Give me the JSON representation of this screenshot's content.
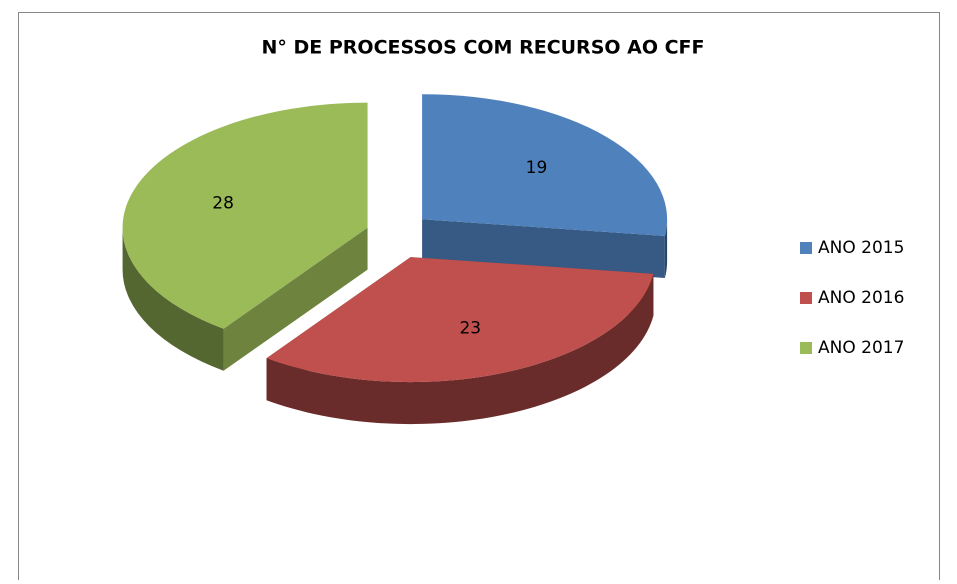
{
  "chart_data": {
    "type": "pie",
    "title": "N° DE PROCESSOS COM RECURSO AO CFF",
    "categories": [
      "ANO 2015",
      "ANO 2016",
      "ANO 2017"
    ],
    "values": [
      19,
      23,
      28
    ],
    "colors": [
      "#4f81bd",
      "#c0504d",
      "#9bbb59"
    ],
    "legend": "right"
  }
}
